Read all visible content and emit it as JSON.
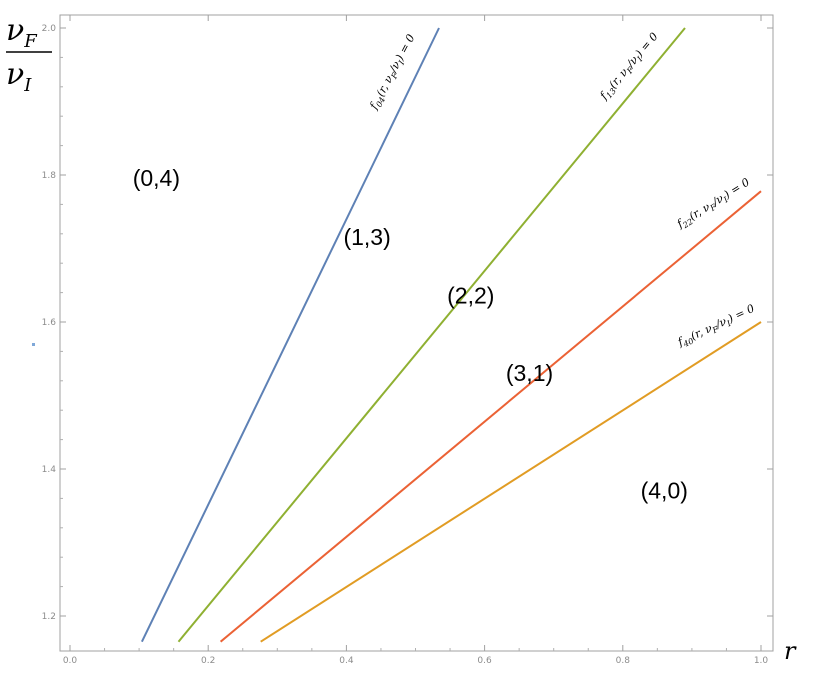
{
  "chart_data": {
    "type": "line",
    "title": "",
    "xlabel": "r",
    "ylabel": {
      "numerator": "ν",
      "numerator_sub": "F",
      "denominator": "ν",
      "denominator_sub": "I"
    },
    "xlim": [
      0.0,
      1.0
    ],
    "ylim": [
      1.16,
      2.0
    ],
    "xticks": [
      "0.0",
      "0.2",
      "0.4",
      "0.6",
      "0.8",
      "1.0"
    ],
    "yticks": [
      "1.2",
      "1.4",
      "1.6",
      "1.8",
      "2.0"
    ],
    "grid": false,
    "series": [
      {
        "name": "f04(r, νF/νI) = 0",
        "color": "#5e81b5",
        "x": [
          0.104,
          0.534
        ],
        "y": [
          1.165,
          2.0
        ]
      },
      {
        "name": "f13(r, νF/νI) = 0",
        "color": "#8fb032",
        "x": [
          0.157,
          0.89
        ],
        "y": [
          1.165,
          2.0
        ]
      },
      {
        "name": "f22(r, νF/νI) = 0",
        "color": "#eb6235",
        "x": [
          0.218,
          1.0
        ],
        "y": [
          1.165,
          1.778
        ]
      },
      {
        "name": "f40(r, νF/νI) = 0",
        "color": "#e19c24",
        "x": [
          0.276,
          1.0
        ],
        "y": [
          1.165,
          1.6
        ]
      }
    ],
    "curve_labels": [
      {
        "text": "f04(r, νF/νI) = 0",
        "sub": "04"
      },
      {
        "text": "f13(r, νF/νI) = 0",
        "sub": "13"
      },
      {
        "text": "f22(r, νF/νI) = 0",
        "sub": "22"
      },
      {
        "text": "f40(r, νF/νI) = 0",
        "sub": "40"
      }
    ],
    "region_labels": [
      {
        "text": "(0,4)",
        "x": 0.125,
        "y": 1.785
      },
      {
        "text": "(1,3)",
        "x": 0.43,
        "y": 1.705
      },
      {
        "text": "(2,2)",
        "x": 0.58,
        "y": 1.625
      },
      {
        "text": "(3,1)",
        "x": 0.665,
        "y": 1.52
      },
      {
        "text": "(4,0)",
        "x": 0.86,
        "y": 1.36
      }
    ]
  }
}
